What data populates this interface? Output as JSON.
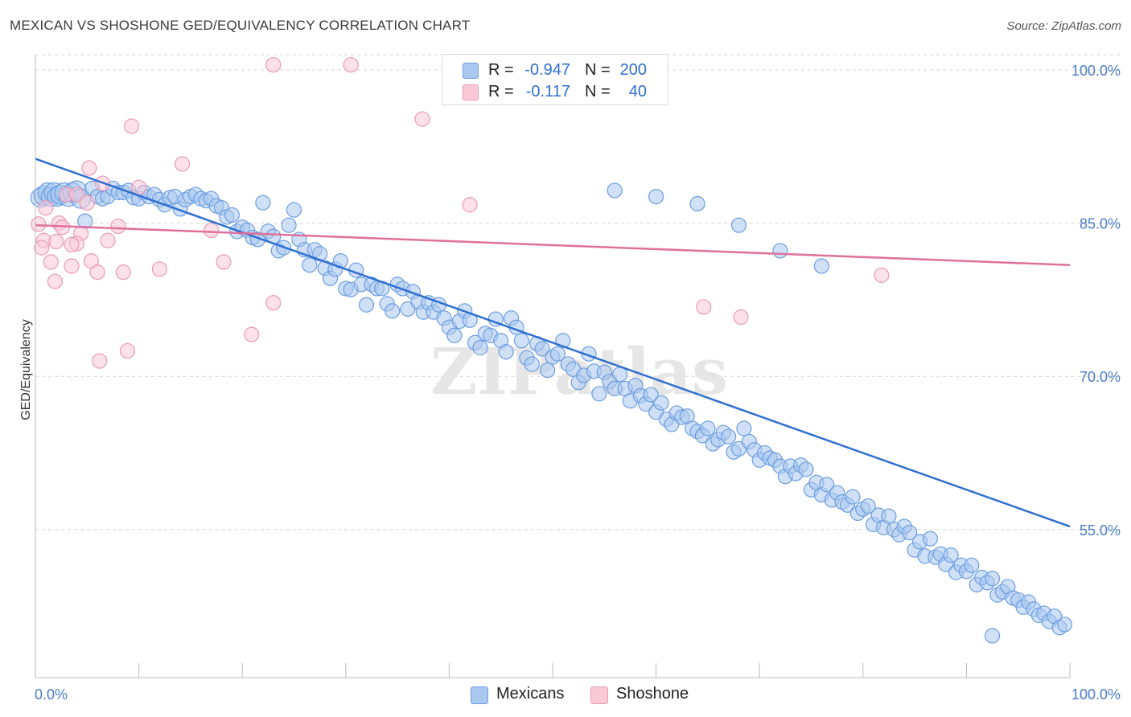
{
  "title": "MEXICAN VS SHOSHONE GED/EQUIVALENCY CORRELATION CHART",
  "source": "Source: ZipAtlas.com",
  "watermark": "ZIPatlas",
  "legend": {
    "rows": [
      {
        "r_label": "R =",
        "r_value": "-0.947",
        "n_label": "N =",
        "n_value": "200",
        "color": "#a9c8f0"
      },
      {
        "r_label": "R =",
        "r_value": "-0.117",
        "n_label": "N =",
        "n_value": "40",
        "color": "#f5b8cb"
      }
    ]
  },
  "bottom_legend": [
    "Mexicans",
    "Shoshone"
  ],
  "colors": {
    "mexicans_fill": "#a9c8f0",
    "mexicans_stroke": "#6d9ee0",
    "mexicans_line": "#2f6fd0",
    "shoshone_fill": "#f9c9d8",
    "shoshone_stroke": "#ea9bb4",
    "shoshone_line": "#e0709a",
    "tick_text": "#4a7cc9",
    "grid": "#d6d6d6"
  },
  "chart_data": {
    "type": "scatter",
    "title": "MEXICAN VS SHOSHONE GED/EQUIVALENCY CORRELATION CHART",
    "xlabel": "",
    "ylabel": "GED/Equivalency",
    "xlim": [
      0,
      100
    ],
    "ylim": [
      40.5,
      101.5
    ],
    "x_tick_labels": [
      "0.0%",
      "100.0%"
    ],
    "y_ticks": [
      {
        "value": 100,
        "label": "100.0%"
      },
      {
        "value": 85,
        "label": "85.0%"
      },
      {
        "value": 70,
        "label": "70.0%"
      },
      {
        "value": 55,
        "label": "55.0%"
      }
    ],
    "grid": true,
    "legend_position": "top-center",
    "series": [
      {
        "name": "Mexicans",
        "trend": {
          "x0": 0,
          "y0": 91.3,
          "x1": 100,
          "y1": 55.3
        },
        "points": [
          [
            0.5,
            87.5
          ],
          [
            0.8,
            87.7
          ],
          [
            1.2,
            88.0
          ],
          [
            1.5,
            87.6
          ],
          [
            1.8,
            88.0
          ],
          [
            2.1,
            87.6
          ],
          [
            2.4,
            87.8
          ],
          [
            2.8,
            88.0
          ],
          [
            3.2,
            87.6
          ],
          [
            3.6,
            88.0
          ],
          [
            4.0,
            88.2
          ],
          [
            4.4,
            87.4
          ],
          [
            4.8,
            85.2
          ],
          [
            5.5,
            88.4
          ],
          [
            6.0,
            87.6
          ],
          [
            6.5,
            87.4
          ],
          [
            7.0,
            87.6
          ],
          [
            7.5,
            88.4
          ],
          [
            8.0,
            88.0
          ],
          [
            8.5,
            88.0
          ],
          [
            9.0,
            88.2
          ],
          [
            9.5,
            87.5
          ],
          [
            10.0,
            87.4
          ],
          [
            10.5,
            88.0
          ],
          [
            11.0,
            87.6
          ],
          [
            11.5,
            87.8
          ],
          [
            12.0,
            87.3
          ],
          [
            12.5,
            86.8
          ],
          [
            13.0,
            87.5
          ],
          [
            13.5,
            87.6
          ],
          [
            14.0,
            86.4
          ],
          [
            14.5,
            87.3
          ],
          [
            15.0,
            87.6
          ],
          [
            15.5,
            87.8
          ],
          [
            16.0,
            87.4
          ],
          [
            16.5,
            87.2
          ],
          [
            17.0,
            87.4
          ],
          [
            17.5,
            86.7
          ],
          [
            18.0,
            86.5
          ],
          [
            18.5,
            85.6
          ],
          [
            19.0,
            85.8
          ],
          [
            19.5,
            84.2
          ],
          [
            20.0,
            84.6
          ],
          [
            20.5,
            84.3
          ],
          [
            21.0,
            83.6
          ],
          [
            21.5,
            83.4
          ],
          [
            22.0,
            87.0
          ],
          [
            22.5,
            84.2
          ],
          [
            23.0,
            83.7
          ],
          [
            23.5,
            82.3
          ],
          [
            24.0,
            82.6
          ],
          [
            24.5,
            84.8
          ],
          [
            25.0,
            86.3
          ],
          [
            25.5,
            83.4
          ],
          [
            26.0,
            82.4
          ],
          [
            26.5,
            80.9
          ],
          [
            27.0,
            82.4
          ],
          [
            27.5,
            82.0
          ],
          [
            28.0,
            80.6
          ],
          [
            28.5,
            79.6
          ],
          [
            29.0,
            80.5
          ],
          [
            29.5,
            81.3
          ],
          [
            30.0,
            78.6
          ],
          [
            30.5,
            78.5
          ],
          [
            31.0,
            80.4
          ],
          [
            31.5,
            79.0
          ],
          [
            32.0,
            77.0
          ],
          [
            32.5,
            79.0
          ],
          [
            33.0,
            78.6
          ],
          [
            33.5,
            78.6
          ],
          [
            34.0,
            77.1
          ],
          [
            34.5,
            76.4
          ],
          [
            35.0,
            79.0
          ],
          [
            35.5,
            78.6
          ],
          [
            36.0,
            76.6
          ],
          [
            36.5,
            78.3
          ],
          [
            37.0,
            77.3
          ],
          [
            37.5,
            76.3
          ],
          [
            38.0,
            77.2
          ],
          [
            38.5,
            76.3
          ],
          [
            39.0,
            77.0
          ],
          [
            39.5,
            75.7
          ],
          [
            40.0,
            74.8
          ],
          [
            40.5,
            74.0
          ],
          [
            41.0,
            75.4
          ],
          [
            41.5,
            76.4
          ],
          [
            42.0,
            75.5
          ],
          [
            42.5,
            73.3
          ],
          [
            43.0,
            72.8
          ],
          [
            43.5,
            74.2
          ],
          [
            44.0,
            74.0
          ],
          [
            44.5,
            75.6
          ],
          [
            45.0,
            73.5
          ],
          [
            45.5,
            72.4
          ],
          [
            46.0,
            75.7
          ],
          [
            46.5,
            74.8
          ],
          [
            47.0,
            73.5
          ],
          [
            47.5,
            71.8
          ],
          [
            48.0,
            71.2
          ],
          [
            48.5,
            73.2
          ],
          [
            49.0,
            72.7
          ],
          [
            49.5,
            70.6
          ],
          [
            50.0,
            71.9
          ],
          [
            50.5,
            72.2
          ],
          [
            51.0,
            73.5
          ],
          [
            51.5,
            71.2
          ],
          [
            52.0,
            70.7
          ],
          [
            52.5,
            69.4
          ],
          [
            53.0,
            70.1
          ],
          [
            53.5,
            72.2
          ],
          [
            54.0,
            70.5
          ],
          [
            54.5,
            68.3
          ],
          [
            55.0,
            70.4
          ],
          [
            55.5,
            69.5
          ],
          [
            56.0,
            68.8
          ],
          [
            56.5,
            70.2
          ],
          [
            57.0,
            68.8
          ],
          [
            57.5,
            67.6
          ],
          [
            58.0,
            69.1
          ],
          [
            58.5,
            68.1
          ],
          [
            59.0,
            67.3
          ],
          [
            59.5,
            68.2
          ],
          [
            60.0,
            66.5
          ],
          [
            60.5,
            67.4
          ],
          [
            61.0,
            65.8
          ],
          [
            61.5,
            65.3
          ],
          [
            62.0,
            66.4
          ],
          [
            62.5,
            66.0
          ],
          [
            63.0,
            66.1
          ],
          [
            63.5,
            64.9
          ],
          [
            64.0,
            64.6
          ],
          [
            64.5,
            64.2
          ],
          [
            65.0,
            64.9
          ],
          [
            65.5,
            63.4
          ],
          [
            66.0,
            63.8
          ],
          [
            66.5,
            64.5
          ],
          [
            67.0,
            64.1
          ],
          [
            67.5,
            62.6
          ],
          [
            68.0,
            62.9
          ],
          [
            68.5,
            64.9
          ],
          [
            69.0,
            63.6
          ],
          [
            69.5,
            62.8
          ],
          [
            70.0,
            61.8
          ],
          [
            70.5,
            62.5
          ],
          [
            71.0,
            62.0
          ],
          [
            71.5,
            61.8
          ],
          [
            72.0,
            61.2
          ],
          [
            72.5,
            60.2
          ],
          [
            73.0,
            61.2
          ],
          [
            73.5,
            60.5
          ],
          [
            74.0,
            61.3
          ],
          [
            74.5,
            60.9
          ],
          [
            75.0,
            58.9
          ],
          [
            75.5,
            59.6
          ],
          [
            76.0,
            58.4
          ],
          [
            76.5,
            59.4
          ],
          [
            77.0,
            57.9
          ],
          [
            77.5,
            58.6
          ],
          [
            78.0,
            57.7
          ],
          [
            78.5,
            57.4
          ],
          [
            79.0,
            58.2
          ],
          [
            79.5,
            56.6
          ],
          [
            80.0,
            57.0
          ],
          [
            80.5,
            57.3
          ],
          [
            81.0,
            55.5
          ],
          [
            81.5,
            56.4
          ],
          [
            82.0,
            55.2
          ],
          [
            82.5,
            56.3
          ],
          [
            83.0,
            55.0
          ],
          [
            83.5,
            54.5
          ],
          [
            84.0,
            55.3
          ],
          [
            84.5,
            54.7
          ],
          [
            85.0,
            53.0
          ],
          [
            85.5,
            53.8
          ],
          [
            86.0,
            52.4
          ],
          [
            86.5,
            54.1
          ],
          [
            87.0,
            52.3
          ],
          [
            87.5,
            52.6
          ],
          [
            88.0,
            51.6
          ],
          [
            88.5,
            52.5
          ],
          [
            89.0,
            50.8
          ],
          [
            89.5,
            51.5
          ],
          [
            90.0,
            50.9
          ],
          [
            90.5,
            51.5
          ],
          [
            91.0,
            49.6
          ],
          [
            91.5,
            50.3
          ],
          [
            92.0,
            49.8
          ],
          [
            92.5,
            50.2
          ],
          [
            93.0,
            48.6
          ],
          [
            93.5,
            48.9
          ],
          [
            94.0,
            49.4
          ],
          [
            94.5,
            48.3
          ],
          [
            95.0,
            48.1
          ],
          [
            95.5,
            47.4
          ],
          [
            96.0,
            47.9
          ],
          [
            96.5,
            47.2
          ],
          [
            97.0,
            46.6
          ],
          [
            97.5,
            46.8
          ],
          [
            98.0,
            46.0
          ],
          [
            98.5,
            46.5
          ],
          [
            99.0,
            45.4
          ],
          [
            99.5,
            45.7
          ],
          [
            92.5,
            44.6
          ],
          [
            56.0,
            88.2
          ],
          [
            60.0,
            87.6
          ],
          [
            64.0,
            86.9
          ],
          [
            68.0,
            84.8
          ],
          [
            72.0,
            82.3
          ],
          [
            76.0,
            80.8
          ]
        ]
      },
      {
        "name": "Shoshone",
        "trend": {
          "x0": 0,
          "y0": 84.8,
          "x1": 100,
          "y1": 80.9
        },
        "points": [
          [
            0.3,
            84.9
          ],
          [
            0.8,
            83.3
          ],
          [
            1.5,
            81.2
          ],
          [
            1.9,
            79.3
          ],
          [
            2.3,
            85.0
          ],
          [
            2.6,
            84.6
          ],
          [
            3.0,
            87.8
          ],
          [
            3.5,
            80.8
          ],
          [
            4.0,
            87.8
          ],
          [
            4.4,
            84.0
          ],
          [
            5.0,
            87.0
          ],
          [
            5.2,
            90.4
          ],
          [
            5.4,
            81.3
          ],
          [
            6.0,
            80.2
          ],
          [
            6.2,
            71.5
          ],
          [
            6.5,
            88.9
          ],
          [
            7.0,
            83.3
          ],
          [
            8.0,
            84.7
          ],
          [
            8.5,
            80.2
          ],
          [
            8.9,
            72.5
          ],
          [
            9.3,
            94.5
          ],
          [
            10.0,
            88.5
          ],
          [
            12.0,
            80.5
          ],
          [
            14.2,
            90.8
          ],
          [
            17.0,
            84.3
          ],
          [
            18.2,
            81.2
          ],
          [
            20.9,
            74.1
          ],
          [
            23.0,
            77.2
          ],
          [
            23.0,
            100.5
          ],
          [
            30.5,
            100.5
          ],
          [
            37.4,
            95.2
          ],
          [
            42.0,
            86.8
          ],
          [
            64.6,
            76.8
          ],
          [
            68.2,
            75.8
          ],
          [
            81.8,
            79.9
          ],
          [
            1.0,
            86.5
          ],
          [
            2.0,
            83.2
          ],
          [
            4.0,
            83.0
          ],
          [
            3.5,
            82.9
          ],
          [
            0.6,
            82.6
          ]
        ]
      }
    ]
  }
}
